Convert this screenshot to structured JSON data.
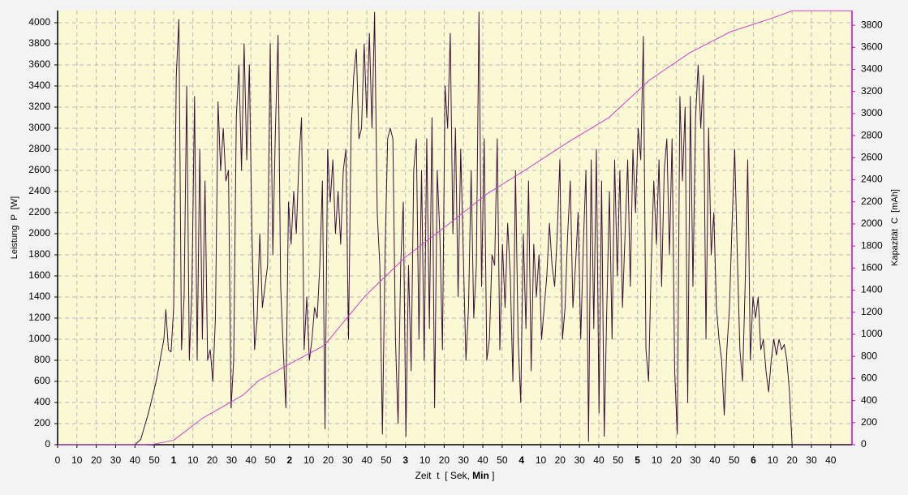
{
  "chart_data": {
    "type": "line",
    "ylabel": "Leistung  P  [W]",
    "y2label": "Kapazität  C  [mAh]",
    "xlabel": [
      "Zeit  t  [ Sek, ",
      "Min",
      " ]"
    ],
    "xlim": [
      0,
      411
    ],
    "ylim": [
      0,
      4115
    ],
    "y2lim": [
      0,
      3933
    ],
    "grid": true,
    "xticks": [
      0,
      10,
      20,
      30,
      40,
      50,
      {
        "value": 60,
        "label": "1",
        "bold": true
      },
      {
        "value": 70,
        "label": "10"
      },
      {
        "value": 80,
        "label": "20"
      },
      {
        "value": 90,
        "label": "30"
      },
      {
        "value": 100,
        "label": "40"
      },
      {
        "value": 110,
        "label": "50"
      },
      {
        "value": 120,
        "label": "2",
        "bold": true
      },
      {
        "value": 130,
        "label": "10"
      },
      {
        "value": 140,
        "label": "20"
      },
      {
        "value": 150,
        "label": "30"
      },
      {
        "value": 160,
        "label": "40"
      },
      {
        "value": 170,
        "label": "50"
      },
      {
        "value": 180,
        "label": "3",
        "bold": true
      },
      {
        "value": 190,
        "label": "10"
      },
      {
        "value": 200,
        "label": "20"
      },
      {
        "value": 210,
        "label": "30"
      },
      {
        "value": 220,
        "label": "40"
      },
      {
        "value": 230,
        "label": "50"
      },
      {
        "value": 240,
        "label": "4",
        "bold": true
      },
      {
        "value": 250,
        "label": "10"
      },
      {
        "value": 260,
        "label": "20"
      },
      {
        "value": 270,
        "label": "30"
      },
      {
        "value": 280,
        "label": "40"
      },
      {
        "value": 290,
        "label": "50"
      },
      {
        "value": 300,
        "label": "5",
        "bold": true
      },
      {
        "value": 310,
        "label": "10"
      },
      {
        "value": 320,
        "label": "20"
      },
      {
        "value": 330,
        "label": "30"
      },
      {
        "value": 340,
        "label": "40"
      },
      {
        "value": 350,
        "label": "50"
      },
      {
        "value": 360,
        "label": "6",
        "bold": true
      },
      {
        "value": 370,
        "label": "10"
      },
      {
        "value": 380,
        "label": "20"
      },
      {
        "value": 390,
        "label": "30"
      },
      {
        "value": 400,
        "label": "40"
      }
    ],
    "yticks": [
      0,
      200,
      400,
      600,
      800,
      1000,
      1200,
      1400,
      1600,
      1800,
      2000,
      2200,
      2400,
      2600,
      2800,
      3000,
      3200,
      3400,
      3600,
      3800,
      4000
    ],
    "y2ticks": [
      0,
      200,
      400,
      600,
      800,
      1000,
      1200,
      1400,
      1600,
      1800,
      2000,
      2200,
      2400,
      2600,
      2800,
      3000,
      3200,
      3400,
      3600,
      3800
    ],
    "series": [
      {
        "color": "#3c0f3c",
        "x": [
          0,
          40,
          43,
          47,
          51,
          55,
          56,
          57.35,
          58.7,
          60.05,
          61.4,
          62.75,
          64.1,
          65.45,
          66.8,
          68.15,
          69.5,
          70.85,
          72.2,
          73.55,
          74.9,
          76.25,
          77.6,
          78.95,
          80.3,
          81.65,
          83,
          84.35,
          85.7,
          87.05,
          88.4,
          89.75,
          91.1,
          92.45,
          93.8,
          95.15,
          96.5,
          97.85,
          99.2,
          100.55,
          101.9,
          103.25,
          104.6,
          105.95,
          107.3,
          108.65,
          110,
          111.35,
          112.7,
          114.05,
          115.4,
          116.75,
          118.1,
          119.45,
          120.8,
          122.15,
          123.5,
          124.85,
          126.2,
          127.55,
          128.9,
          130.25,
          131.6,
          132.95,
          134.3,
          135.65,
          137,
          138.35,
          139.7,
          141.05,
          142.4,
          143.75,
          145.1,
          146.45,
          147.8,
          149.15,
          150.5,
          151.85,
          153.2,
          154.55,
          155.9,
          157.25,
          158.6,
          159.95,
          161.3,
          162.65,
          164,
          165.35,
          166.7,
          168.05,
          169.4,
          170.75,
          172.1,
          173.45,
          174.8,
          176.15,
          177.5,
          178.85,
          180.2,
          181.55,
          182.9,
          184.25,
          185.6,
          186.95,
          188.3,
          189.65,
          191,
          192.35,
          193.7,
          195.05,
          196.4,
          197.75,
          199.1,
          200.45,
          201.8,
          203.15,
          204.5,
          205.85,
          207.2,
          208.55,
          209.9,
          211.25,
          212.6,
          213.95,
          215.3,
          216.65,
          218,
          219.35,
          220.7,
          222.05,
          223.4,
          224.75,
          226.1,
          227.45,
          228.8,
          230.15,
          231.5,
          232.85,
          234.2,
          235.55,
          236.9,
          238.25,
          239.6,
          240.95,
          242.3,
          243.65,
          245,
          246.35,
          247.7,
          249.05,
          250.4,
          251.75,
          253.1,
          254.45,
          255.8,
          257.15,
          258.5,
          259.85,
          261.2,
          262.55,
          263.9,
          265.25,
          266.6,
          267.95,
          269.3,
          270.65,
          272,
          273.35,
          274.7,
          276.05,
          277.4,
          278.75,
          280.1,
          281.45,
          282.8,
          284.15,
          285.5,
          286.85,
          288.2,
          289.55,
          290.9,
          292.25,
          293.6,
          294.95,
          296.3,
          297.65,
          299,
          300.35,
          301.7,
          303.05,
          304.4,
          305.75,
          307.1,
          308.45,
          309.8,
          311.15,
          312.5,
          313.85,
          315.2,
          316.55,
          317.9,
          319.25,
          320.6,
          321.95,
          323.3,
          324.65,
          326,
          327.35,
          328.7,
          330.05,
          331.4,
          332.75,
          334.1,
          335.45,
          336.8,
          338.15,
          339.5,
          340.85,
          342.2,
          343.55,
          344.9,
          346.25,
          347.6,
          348.95,
          350.3,
          351.65,
          353,
          354.35,
          355.7,
          357.05,
          358.4,
          359.75,
          361.1,
          362.45,
          363.8,
          365.15,
          366.5,
          367.85,
          369.2,
          370.55,
          371.9,
          373.25,
          374.6,
          375.95,
          377.3,
          378.65,
          380,
          411
        ],
        "values": [
          0,
          0,
          50,
          300,
          600,
          1000,
          1280,
          900,
          880,
          1300,
          3500,
          4030,
          900,
          1400,
          3400,
          800,
          1500,
          3300,
          800,
          2800,
          1000,
          2500,
          800,
          900,
          600,
          1200,
          3250,
          2600,
          3000,
          2500,
          2600,
          350,
          800,
          3100,
          3600,
          2600,
          3800,
          2700,
          3600,
          2000,
          900,
          1200,
          2000,
          1300,
          1500,
          1700,
          3800,
          1800,
          3000,
          3880,
          1500,
          900,
          350,
          2300,
          1900,
          2400,
          2000,
          2700,
          3100,
          900,
          1400,
          800,
          1000,
          1300,
          1200,
          1700,
          2500,
          150,
          2800,
          2300,
          2700,
          2000,
          2400,
          1900,
          2600,
          2800,
          1000,
          3000,
          3500,
          3750,
          2900,
          3000,
          3800,
          3100,
          3900,
          3000,
          4100,
          2200,
          1700,
          100,
          1800,
          2900,
          3000,
          2900,
          1000,
          200,
          1700,
          2300,
          80,
          1700,
          700,
          2600,
          2900,
          1000,
          2600,
          800,
          2900,
          1100,
          3100,
          350,
          2600,
          2000,
          900,
          3400,
          3000,
          3900,
          2000,
          3000,
          1400,
          2800,
          1800,
          800,
          1300,
          2600,
          1200,
          1700,
          4100,
          1500,
          2900,
          800,
          1000,
          1800,
          1700,
          2900,
          900,
          1900,
          1300,
          2100,
          1600,
          600,
          2600,
          1000,
          400,
          2000,
          1100,
          2500,
          700,
          1900,
          1400,
          1800,
          1000,
          1300,
          1600,
          2100,
          1700,
          1500,
          2000,
          2700,
          1000,
          1300,
          2000,
          2500,
          1300,
          1700,
          2200,
          1000,
          1900,
          2600,
          30,
          2700,
          1100,
          2800,
          300,
          2500,
          80,
          1300,
          2400,
          1000,
          2700,
          1600,
          2600,
          1300,
          2000,
          2700,
          1500,
          2800,
          2200,
          3000,
          2700,
          3870,
          900,
          600,
          1700,
          2500,
          1900,
          2700,
          1500,
          2600,
          2900,
          1800,
          2900,
          700,
          100,
          3300,
          2500,
          3200,
          400,
          3300,
          1500,
          3100,
          3600,
          3000,
          3500,
          1000,
          3000,
          1800,
          2200,
          1300,
          1000,
          800,
          280,
          900,
          1300,
          2100,
          2800,
          1800,
          900,
          600,
          1500,
          2700,
          800,
          1400,
          1200,
          1400,
          900,
          1000,
          700,
          500,
          800,
          1000,
          850,
          1000,
          900,
          950,
          800,
          500,
          0,
          0
        ]
      },
      {
        "color": "#cc44cc",
        "axis": "y2",
        "x": [
          0,
          45,
          50,
          60,
          75,
          96,
          104,
          138,
          159,
          180,
          201,
          222,
          243,
          264,
          285,
          306,
          327,
          348,
          369,
          380,
          411
        ],
        "values": [
          0,
          0,
          5,
          40,
          240,
          450,
          580,
          900,
          1345,
          1700,
          1980,
          2270,
          2500,
          2740,
          2960,
          3300,
          3550,
          3740,
          3860,
          3930,
          3930
        ]
      }
    ]
  }
}
